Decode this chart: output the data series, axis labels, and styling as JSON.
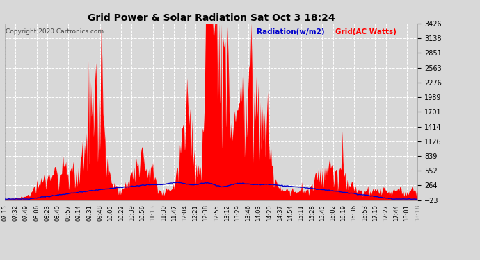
{
  "title": "Grid Power & Solar Radiation Sat Oct 3 18:24",
  "copyright": "Copyright 2020 Cartronics.com",
  "legend_radiation": "Radiation(w/m2)",
  "legend_grid": "Grid(AC Watts)",
  "y_ticks": [
    -23.0,
    264.4,
    551.8,
    839.1,
    1126.5,
    1413.9,
    1701.3,
    1988.7,
    2276.1,
    2563.4,
    2850.8,
    3138.2,
    3425.6
  ],
  "ylim": [
    -23.0,
    3425.6
  ],
  "background_color": "#d8d8d8",
  "plot_bg_color": "#d8d8d8",
  "grid_color": "#ffffff",
  "title_color": "#000000",
  "radiation_color": "#0000cc",
  "grid_power_color": "#ff0000",
  "x_labels": [
    "07:15",
    "07:32",
    "07:49",
    "08:06",
    "08:23",
    "08:40",
    "08:57",
    "09:14",
    "09:31",
    "09:48",
    "10:05",
    "10:22",
    "10:39",
    "10:56",
    "11:13",
    "11:30",
    "11:47",
    "12:04",
    "12:21",
    "12:38",
    "12:55",
    "13:12",
    "13:29",
    "13:46",
    "14:03",
    "14:20",
    "14:37",
    "14:54",
    "15:11",
    "15:28",
    "15:45",
    "16:02",
    "16:19",
    "16:36",
    "16:53",
    "17:10",
    "17:27",
    "17:44",
    "18:01",
    "18:18"
  ],
  "n_points": 400,
  "title_fontsize": 10,
  "tick_fontsize": 7,
  "xlabel_fontsize": 6
}
